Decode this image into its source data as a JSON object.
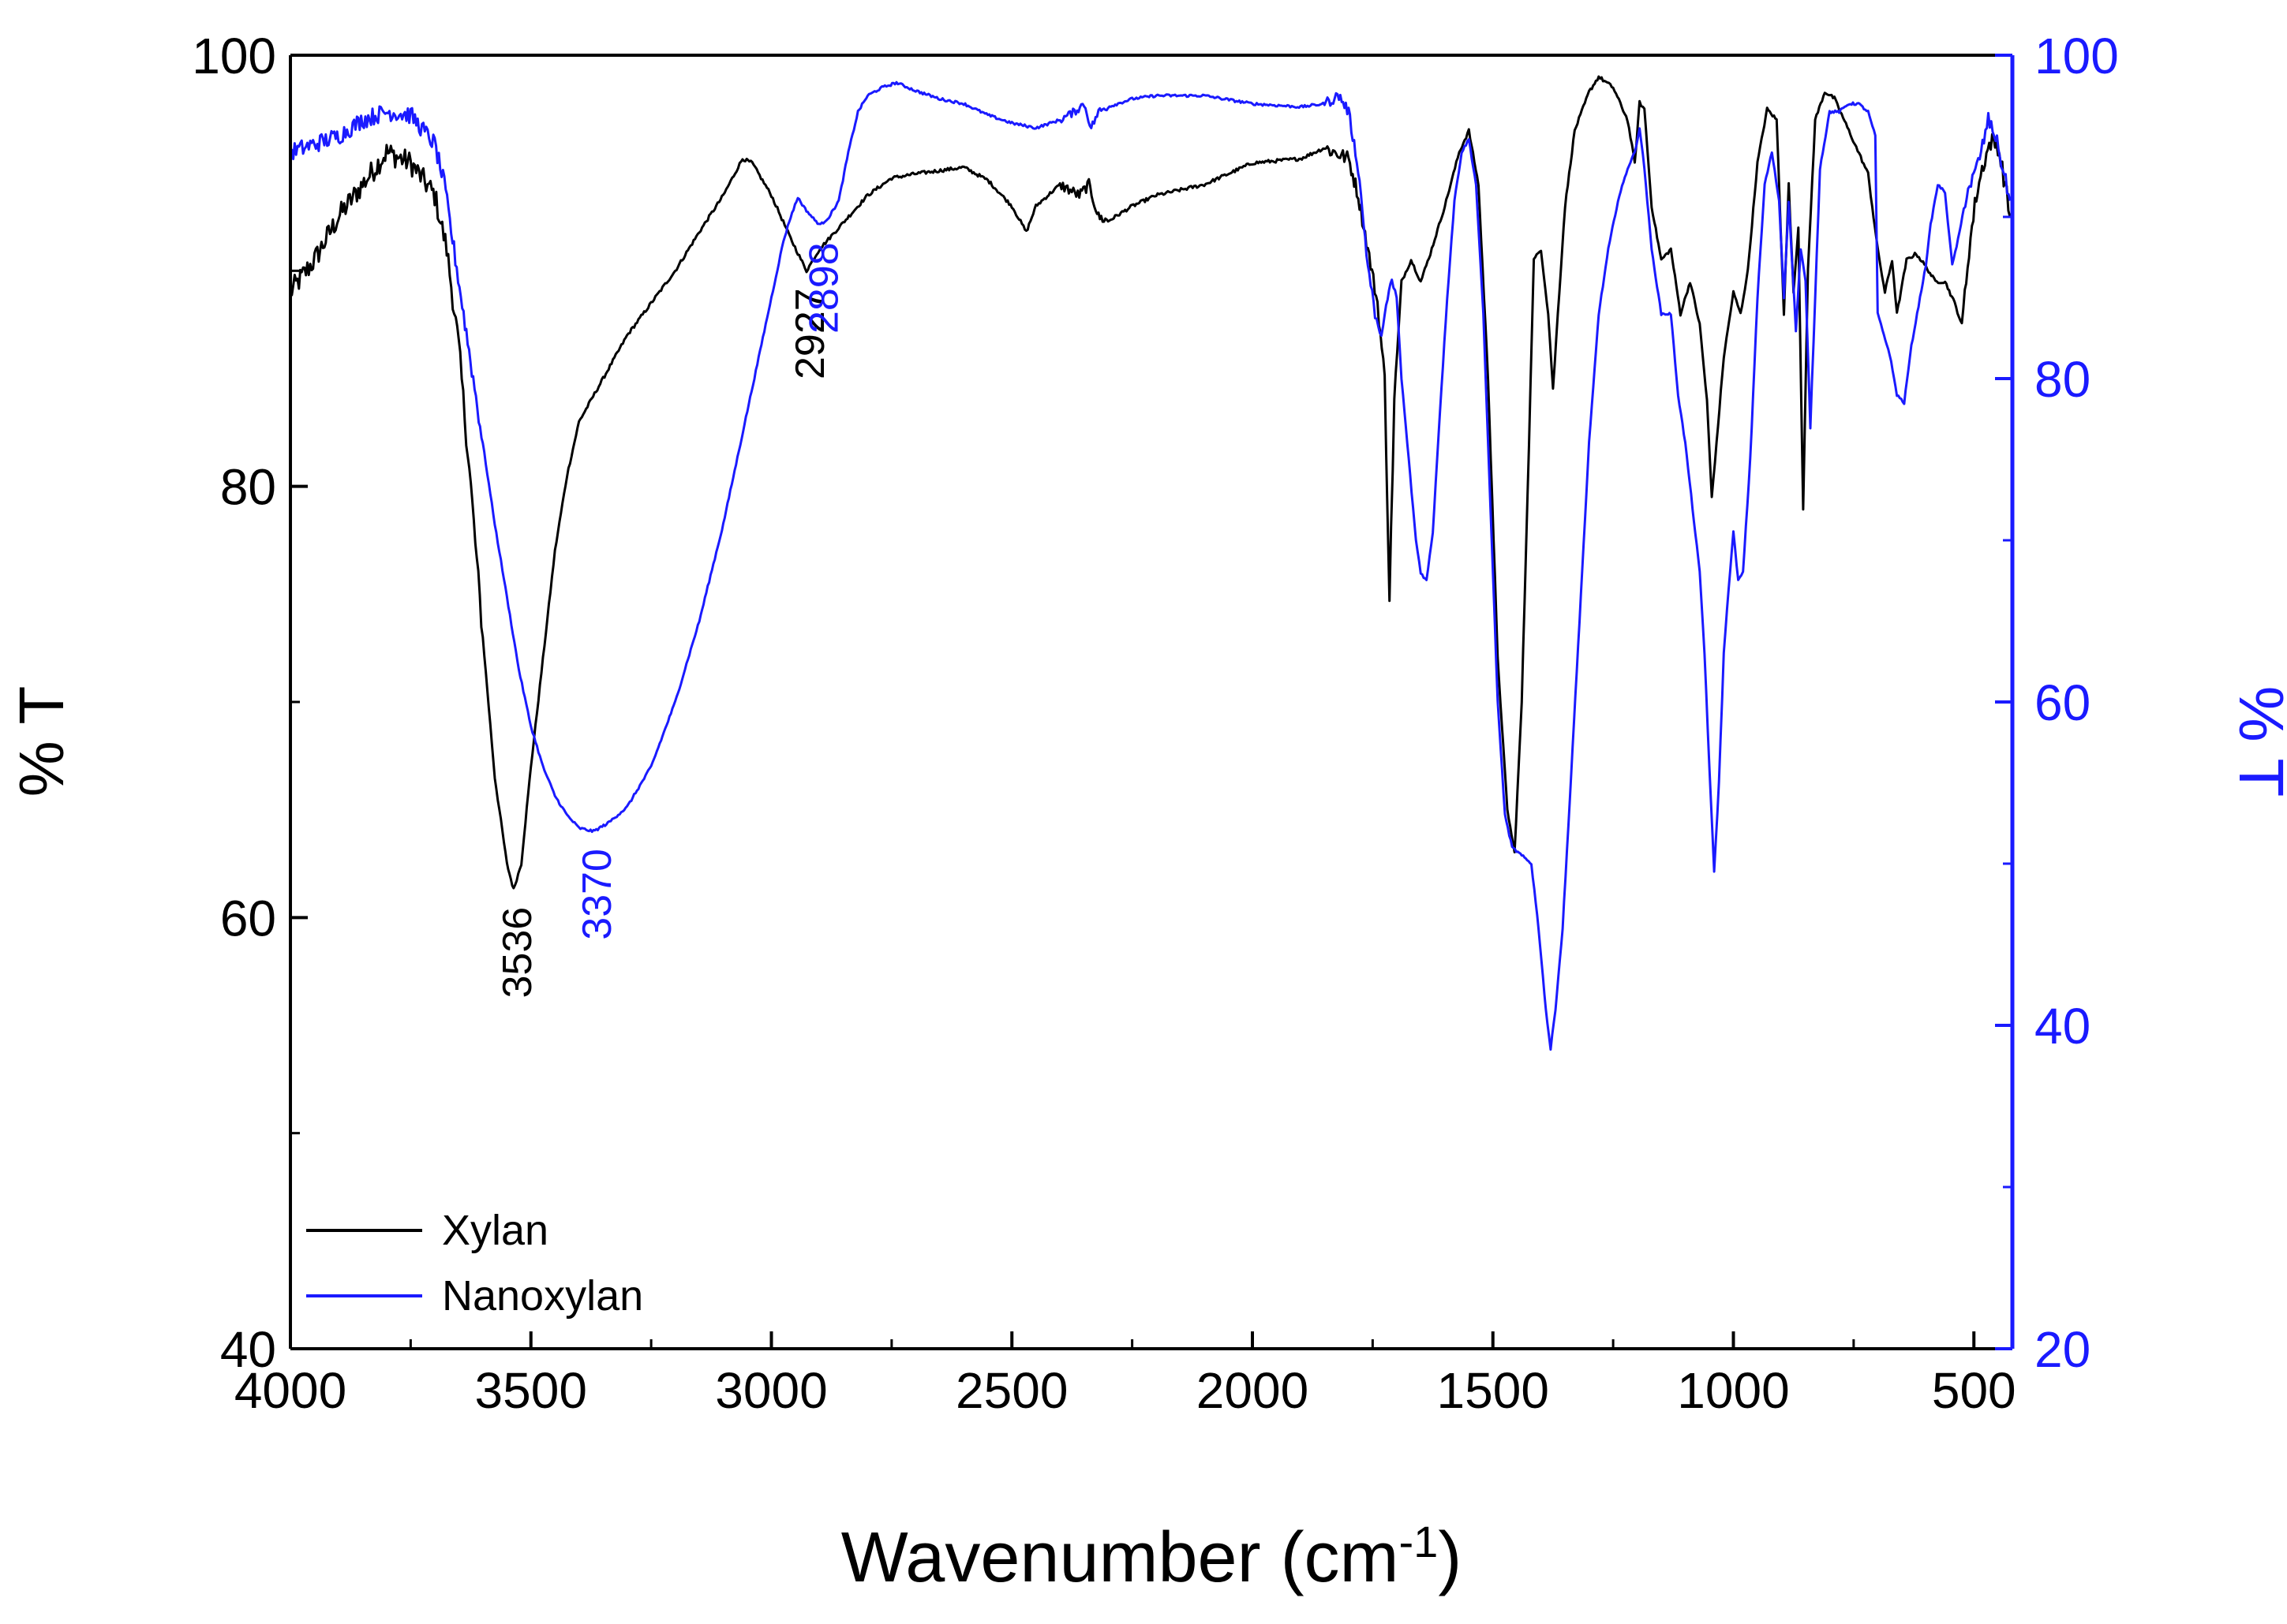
{
  "chart_data": {
    "type": "line",
    "xlabel_main": "Wavenumber (cm",
    "xlabel_sup": "-1",
    "xlabel_close": ")",
    "ylabel_left": "% T",
    "ylabel_right": "% T",
    "xlim": [
      4000,
      420
    ],
    "ylim_left": [
      40,
      100
    ],
    "ylim_right": [
      20,
      100
    ],
    "x_ticks": [
      4000,
      3500,
      3000,
      2500,
      2000,
      1500,
      1000,
      500
    ],
    "x_tick_labels": [
      "4000",
      "3500",
      "3000",
      "2500",
      "2000",
      "1500",
      "1000",
      "500"
    ],
    "y_left_ticks": [
      40,
      60,
      80,
      100
    ],
    "y_left_tick_labels": [
      "40",
      "60",
      "80",
      "100"
    ],
    "y_right_ticks": [
      20,
      40,
      60,
      80,
      100
    ],
    "y_right_tick_labels": [
      "20",
      "40",
      "60",
      "80",
      "100"
    ],
    "colors": {
      "xylan": "#000000",
      "nanoxylan": "#1a1aff",
      "axis": "#000000",
      "right_axis": "#1a1aff"
    },
    "legend": {
      "placement": "bottom-left",
      "entries": [
        "Xylan",
        "Nanoxylan"
      ]
    },
    "annotations": [
      {
        "text": "3536",
        "series": "Xylan",
        "x": 3536
      },
      {
        "text": "3370",
        "series": "Nanoxylan",
        "x": 3370
      },
      {
        "text": "2927",
        "series": "Xylan",
        "x": 2927
      },
      {
        "text": "2898",
        "series": "Nanoxylan",
        "x": 2898
      }
    ],
    "series": [
      {
        "name": "Xylan",
        "axis": "left",
        "points": [
          [
            4000,
            89.0
          ],
          [
            3950,
            90.5
          ],
          [
            3900,
            92.5
          ],
          [
            3850,
            94.0
          ],
          [
            3800,
            95.5
          ],
          [
            3750,
            95.0
          ],
          [
            3700,
            93.5
          ],
          [
            3675,
            91.0
          ],
          [
            3650,
            86.5
          ],
          [
            3625,
            80.0
          ],
          [
            3600,
            73.0
          ],
          [
            3575,
            66.5
          ],
          [
            3550,
            62.5
          ],
          [
            3536,
            61.3
          ],
          [
            3520,
            62.5
          ],
          [
            3500,
            67.0
          ],
          [
            3475,
            72.0
          ],
          [
            3450,
            77.0
          ],
          [
            3425,
            80.5
          ],
          [
            3400,
            83.0
          ],
          [
            3350,
            85.0
          ],
          [
            3300,
            87.0
          ],
          [
            3250,
            88.5
          ],
          [
            3200,
            90.0
          ],
          [
            3150,
            91.8
          ],
          [
            3100,
            93.5
          ],
          [
            3060,
            95.2
          ],
          [
            3040,
            95.0
          ],
          [
            3000,
            93.5
          ],
          [
            2960,
            91.5
          ],
          [
            2927,
            90.0
          ],
          [
            2900,
            91.0
          ],
          [
            2860,
            92.0
          ],
          [
            2800,
            93.5
          ],
          [
            2750,
            94.3
          ],
          [
            2700,
            94.5
          ],
          [
            2600,
            94.8
          ],
          [
            2550,
            94.2
          ],
          [
            2500,
            93.0
          ],
          [
            2470,
            91.8
          ],
          [
            2450,
            93.0
          ],
          [
            2400,
            94.0
          ],
          [
            2360,
            93.5
          ],
          [
            2340,
            94.0
          ],
          [
            2320,
            92.5
          ],
          [
            2300,
            92.3
          ],
          [
            2250,
            93.0
          ],
          [
            2200,
            93.5
          ],
          [
            2100,
            94.0
          ],
          [
            2000,
            95.0
          ],
          [
            1900,
            95.2
          ],
          [
            1850,
            95.7
          ],
          [
            1800,
            95.2
          ],
          [
            1780,
            93.5
          ],
          [
            1760,
            91.0
          ],
          [
            1740,
            88.5
          ],
          [
            1725,
            85.0
          ],
          [
            1715,
            74.8
          ],
          [
            1705,
            84.0
          ],
          [
            1690,
            89.5
          ],
          [
            1670,
            90.5
          ],
          [
            1650,
            89.5
          ],
          [
            1630,
            90.8
          ],
          [
            1600,
            93.0
          ],
          [
            1570,
            95.5
          ],
          [
            1550,
            96.5
          ],
          [
            1530,
            94.0
          ],
          [
            1510,
            85.0
          ],
          [
            1490,
            72.0
          ],
          [
            1470,
            65.0
          ],
          [
            1455,
            63.0
          ],
          [
            1440,
            70.0
          ],
          [
            1425,
            82.0
          ],
          [
            1415,
            90.5
          ],
          [
            1400,
            91.0
          ],
          [
            1385,
            88.0
          ],
          [
            1375,
            84.5
          ],
          [
            1365,
            88.0
          ],
          [
            1350,
            93.0
          ],
          [
            1330,
            96.5
          ],
          [
            1300,
            98.3
          ],
          [
            1280,
            99.0
          ],
          [
            1250,
            98.5
          ],
          [
            1220,
            97.0
          ],
          [
            1205,
            95.0
          ],
          [
            1195,
            97.8
          ],
          [
            1185,
            97.5
          ],
          [
            1170,
            93.0
          ],
          [
            1150,
            90.5
          ],
          [
            1130,
            91.0
          ],
          [
            1110,
            88.0
          ],
          [
            1090,
            89.5
          ],
          [
            1070,
            87.5
          ],
          [
            1055,
            84.0
          ],
          [
            1045,
            79.5
          ],
          [
            1035,
            82.0
          ],
          [
            1020,
            86.0
          ],
          [
            1000,
            89.0
          ],
          [
            985,
            88.0
          ],
          [
            970,
            90.0
          ],
          [
            950,
            95.0
          ],
          [
            930,
            97.5
          ],
          [
            910,
            97.0
          ],
          [
            895,
            88.0
          ],
          [
            885,
            94.0
          ],
          [
            875,
            89.0
          ],
          [
            865,
            92.0
          ],
          [
            855,
            79.0
          ],
          [
            845,
            90.0
          ],
          [
            830,
            97.0
          ],
          [
            810,
            98.3
          ],
          [
            790,
            98.0
          ],
          [
            760,
            96.5
          ],
          [
            720,
            94.5
          ],
          [
            700,
            91.0
          ],
          [
            685,
            89.0
          ],
          [
            670,
            90.5
          ],
          [
            660,
            88.0
          ],
          [
            640,
            90.5
          ],
          [
            620,
            90.8
          ],
          [
            600,
            90.2
          ],
          [
            580,
            89.5
          ],
          [
            560,
            89.5
          ],
          [
            540,
            88.5
          ],
          [
            525,
            87.5
          ],
          [
            510,
            91.0
          ],
          [
            495,
            93.5
          ],
          [
            480,
            95.0
          ],
          [
            465,
            96.0
          ],
          [
            450,
            95.8
          ],
          [
            435,
            94.0
          ],
          [
            425,
            92.5
          ]
        ]
      },
      {
        "name": "Nanoxylan",
        "axis": "right",
        "points": [
          [
            4000,
            94.0
          ],
          [
            3950,
            94.5
          ],
          [
            3900,
            95.0
          ],
          [
            3850,
            96.0
          ],
          [
            3800,
            96.5
          ],
          [
            3750,
            96.3
          ],
          [
            3700,
            94.5
          ],
          [
            3680,
            92.0
          ],
          [
            3660,
            88.0
          ],
          [
            3640,
            84.0
          ],
          [
            3620,
            80.0
          ],
          [
            3600,
            76.0
          ],
          [
            3575,
            71.0
          ],
          [
            3550,
            66.5
          ],
          [
            3525,
            62.0
          ],
          [
            3500,
            58.5
          ],
          [
            3475,
            56.0
          ],
          [
            3450,
            54.2
          ],
          [
            3425,
            53.0
          ],
          [
            3400,
            52.2
          ],
          [
            3370,
            52.0
          ],
          [
            3340,
            52.5
          ],
          [
            3300,
            53.5
          ],
          [
            3250,
            56.0
          ],
          [
            3200,
            60.0
          ],
          [
            3150,
            65.0
          ],
          [
            3100,
            71.0
          ],
          [
            3050,
            78.0
          ],
          [
            3000,
            85.0
          ],
          [
            2975,
            88.5
          ],
          [
            2960,
            90.0
          ],
          [
            2945,
            91.2
          ],
          [
            2930,
            90.5
          ],
          [
            2910,
            89.8
          ],
          [
            2898,
            89.5
          ],
          [
            2880,
            90.0
          ],
          [
            2860,
            91.0
          ],
          [
            2840,
            94.0
          ],
          [
            2820,
            96.5
          ],
          [
            2800,
            97.5
          ],
          [
            2770,
            98.0
          ],
          [
            2740,
            98.3
          ],
          [
            2700,
            97.8
          ],
          [
            2650,
            97.3
          ],
          [
            2600,
            97.0
          ],
          [
            2550,
            96.3
          ],
          [
            2500,
            95.8
          ],
          [
            2450,
            95.5
          ],
          [
            2400,
            96.0
          ],
          [
            2370,
            96.5
          ],
          [
            2350,
            97.0
          ],
          [
            2335,
            95.5
          ],
          [
            2320,
            96.5
          ],
          [
            2300,
            96.8
          ],
          [
            2250,
            97.3
          ],
          [
            2200,
            97.5
          ],
          [
            2100,
            97.5
          ],
          [
            2000,
            97.0
          ],
          [
            1900,
            96.8
          ],
          [
            1850,
            97.0
          ],
          [
            1820,
            97.5
          ],
          [
            1800,
            96.5
          ],
          [
            1780,
            93.0
          ],
          [
            1760,
            87.0
          ],
          [
            1745,
            84.0
          ],
          [
            1735,
            82.5
          ],
          [
            1725,
            84.0
          ],
          [
            1710,
            86.0
          ],
          [
            1700,
            85.0
          ],
          [
            1690,
            80.0
          ],
          [
            1675,
            75.0
          ],
          [
            1660,
            70.0
          ],
          [
            1650,
            68.0
          ],
          [
            1638,
            67.5
          ],
          [
            1625,
            70.5
          ],
          [
            1610,
            78.0
          ],
          [
            1595,
            85.0
          ],
          [
            1580,
            91.0
          ],
          [
            1565,
            94.0
          ],
          [
            1550,
            94.8
          ],
          [
            1535,
            92.0
          ],
          [
            1520,
            84.0
          ],
          [
            1505,
            72.0
          ],
          [
            1490,
            60.0
          ],
          [
            1475,
            53.0
          ],
          [
            1460,
            51.0
          ],
          [
            1440,
            50.5
          ],
          [
            1420,
            50.0
          ],
          [
            1405,
            46.0
          ],
          [
            1390,
            41.0
          ],
          [
            1380,
            38.5
          ],
          [
            1370,
            41.0
          ],
          [
            1355,
            46.0
          ],
          [
            1340,
            54.0
          ],
          [
            1320,
            65.0
          ],
          [
            1300,
            76.0
          ],
          [
            1280,
            84.0
          ],
          [
            1260,
            88.0
          ],
          [
            1240,
            91.0
          ],
          [
            1220,
            93.0
          ],
          [
            1205,
            94.0
          ],
          [
            1195,
            95.5
          ],
          [
            1185,
            93.0
          ],
          [
            1170,
            88.0
          ],
          [
            1150,
            84.0
          ],
          [
            1130,
            84.0
          ],
          [
            1115,
            79.0
          ],
          [
            1100,
            76.0
          ],
          [
            1085,
            72.0
          ],
          [
            1070,
            68.0
          ],
          [
            1060,
            63.0
          ],
          [
            1050,
            56.0
          ],
          [
            1040,
            49.5
          ],
          [
            1030,
            55.0
          ],
          [
            1020,
            63.0
          ],
          [
            1010,
            67.0
          ],
          [
            1000,
            70.5
          ],
          [
            990,
            67.5
          ],
          [
            980,
            68.0
          ],
          [
            965,
            75.0
          ],
          [
            950,
            85.0
          ],
          [
            935,
            92.0
          ],
          [
            920,
            94.0
          ],
          [
            905,
            91.0
          ],
          [
            895,
            85.0
          ],
          [
            885,
            91.0
          ],
          [
            870,
            83.0
          ],
          [
            860,
            88.0
          ],
          [
            850,
            86.0
          ],
          [
            840,
            77.0
          ],
          [
            830,
            85.0
          ],
          [
            820,
            93.0
          ],
          [
            800,
            96.5
          ],
          [
            780,
            96.5
          ],
          [
            760,
            97.0
          ],
          [
            740,
            97.0
          ],
          [
            720,
            96.5
          ],
          [
            705,
            95.0
          ],
          [
            700,
            84.0
          ],
          [
            690,
            83.0
          ],
          [
            675,
            81.5
          ],
          [
            660,
            79.0
          ],
          [
            645,
            78.5
          ],
          [
            630,
            82.0
          ],
          [
            615,
            84.5
          ],
          [
            600,
            87.0
          ],
          [
            590,
            89.5
          ],
          [
            575,
            92.0
          ],
          [
            560,
            91.5
          ],
          [
            545,
            87.0
          ],
          [
            530,
            89.0
          ],
          [
            515,
            91.5
          ],
          [
            500,
            92.5
          ],
          [
            485,
            94.0
          ],
          [
            470,
            96.0
          ],
          [
            455,
            95.0
          ],
          [
            440,
            93.0
          ],
          [
            425,
            91.0
          ]
        ]
      }
    ]
  }
}
